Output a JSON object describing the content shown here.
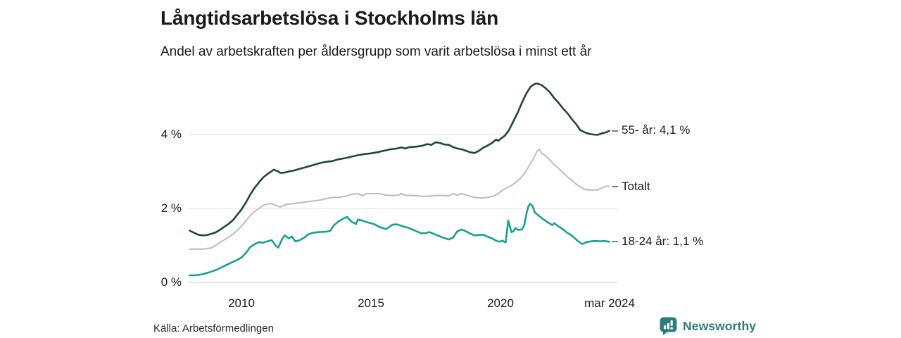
{
  "header": {
    "title": "Långtidsarbetslösa i Stockholms län",
    "subtitle": "Andel av arbetskraften per åldersgrupp som varit arbetslösa i minst ett år"
  },
  "footer": {
    "source": "Källa: Arbetsförmedlingen",
    "brand_name": "Newsworthy",
    "brand_icon": "bar-chart-speech-bubble-icon",
    "brand_color": "#2e7d79"
  },
  "colors": {
    "background": "#ffffff",
    "gridline": "#e3e3e6",
    "tick_dash": "#4a4a4a",
    "text": "#1a1a1a"
  },
  "chart_data": {
    "type": "line",
    "title": "Långtidsarbetslösa i Stockholms län",
    "subtitle": "Andel av arbetskraften per åldersgrupp som varit arbetslösa i minst ett år",
    "grid": true,
    "legend_position": "right-inline-labels",
    "x_axis": {
      "unit": "year (monthly data)",
      "range": [
        2008.0,
        2024.25
      ],
      "ticks": {
        "t2010": "2010",
        "t2015": "2015",
        "t2020": "2020",
        "t2024": "mar 2024"
      },
      "tick_years": [
        2010,
        2015,
        2020,
        2024.2
      ]
    },
    "y_axis": {
      "unit": "percent of labour force",
      "range": [
        0,
        5.6
      ],
      "ticks": {
        "p0": "0 %",
        "p2": "2 %",
        "p4": "4 %"
      },
      "tick_values": [
        0,
        2,
        4
      ]
    },
    "series": [
      {
        "id": "55plus",
        "name": "55- år",
        "label": "55- år: 4,1 %",
        "last_value": 4.1,
        "color": "#1f4839",
        "points": [
          [
            2008.0,
            1.4
          ],
          [
            2008.17,
            1.34
          ],
          [
            2008.33,
            1.29
          ],
          [
            2008.5,
            1.27
          ],
          [
            2008.67,
            1.28
          ],
          [
            2008.83,
            1.31
          ],
          [
            2009.0,
            1.35
          ],
          [
            2009.17,
            1.42
          ],
          [
            2009.33,
            1.5
          ],
          [
            2009.5,
            1.58
          ],
          [
            2009.67,
            1.68
          ],
          [
            2009.83,
            1.82
          ],
          [
            2010.0,
            1.97
          ],
          [
            2010.17,
            2.16
          ],
          [
            2010.33,
            2.36
          ],
          [
            2010.5,
            2.55
          ],
          [
            2010.67,
            2.7
          ],
          [
            2010.83,
            2.83
          ],
          [
            2011.0,
            2.93
          ],
          [
            2011.17,
            3.01
          ],
          [
            2011.25,
            3.05
          ],
          [
            2011.42,
            3.0
          ],
          [
            2011.5,
            2.96
          ],
          [
            2011.67,
            2.97
          ],
          [
            2011.83,
            3.0
          ],
          [
            2012.0,
            3.02
          ],
          [
            2012.25,
            3.07
          ],
          [
            2012.5,
            3.12
          ],
          [
            2012.75,
            3.17
          ],
          [
            2013.0,
            3.22
          ],
          [
            2013.25,
            3.26
          ],
          [
            2013.5,
            3.28
          ],
          [
            2013.75,
            3.33
          ],
          [
            2014.0,
            3.36
          ],
          [
            2014.25,
            3.4
          ],
          [
            2014.5,
            3.44
          ],
          [
            2014.75,
            3.47
          ],
          [
            2015.0,
            3.49
          ],
          [
            2015.25,
            3.52
          ],
          [
            2015.5,
            3.56
          ],
          [
            2015.75,
            3.6
          ],
          [
            2016.0,
            3.62
          ],
          [
            2016.17,
            3.65
          ],
          [
            2016.33,
            3.62
          ],
          [
            2016.5,
            3.66
          ],
          [
            2016.75,
            3.67
          ],
          [
            2017.0,
            3.7
          ],
          [
            2017.17,
            3.74
          ],
          [
            2017.33,
            3.72
          ],
          [
            2017.5,
            3.79
          ],
          [
            2017.67,
            3.77
          ],
          [
            2017.83,
            3.73
          ],
          [
            2018.0,
            3.72
          ],
          [
            2018.17,
            3.66
          ],
          [
            2018.33,
            3.62
          ],
          [
            2018.5,
            3.6
          ],
          [
            2018.67,
            3.56
          ],
          [
            2018.83,
            3.52
          ],
          [
            2019.0,
            3.5
          ],
          [
            2019.17,
            3.56
          ],
          [
            2019.33,
            3.64
          ],
          [
            2019.5,
            3.7
          ],
          [
            2019.67,
            3.77
          ],
          [
            2019.83,
            3.86
          ],
          [
            2019.92,
            3.83
          ],
          [
            2020.0,
            3.88
          ],
          [
            2020.17,
            3.97
          ],
          [
            2020.33,
            4.12
          ],
          [
            2020.5,
            4.36
          ],
          [
            2020.67,
            4.6
          ],
          [
            2020.83,
            4.86
          ],
          [
            2021.0,
            5.11
          ],
          [
            2021.17,
            5.3
          ],
          [
            2021.33,
            5.37
          ],
          [
            2021.42,
            5.38
          ],
          [
            2021.58,
            5.34
          ],
          [
            2021.75,
            5.25
          ],
          [
            2021.92,
            5.13
          ],
          [
            2022.08,
            4.98
          ],
          [
            2022.25,
            4.85
          ],
          [
            2022.42,
            4.7
          ],
          [
            2022.58,
            4.58
          ],
          [
            2022.75,
            4.42
          ],
          [
            2022.92,
            4.28
          ],
          [
            2023.08,
            4.12
          ],
          [
            2023.25,
            4.06
          ],
          [
            2023.42,
            4.02
          ],
          [
            2023.58,
            4.0
          ],
          [
            2023.75,
            3.99
          ],
          [
            2023.92,
            4.03
          ],
          [
            2024.08,
            4.06
          ],
          [
            2024.2,
            4.1
          ]
        ]
      },
      {
        "id": "totalt",
        "name": "Totalt",
        "label": "Totalt",
        "last_value": 2.6,
        "color": "#bdbdc7",
        "points": [
          [
            2008.0,
            0.9
          ],
          [
            2008.25,
            0.9
          ],
          [
            2008.5,
            0.9
          ],
          [
            2008.83,
            0.93
          ],
          [
            2009.0,
            1.0
          ],
          [
            2009.17,
            1.08
          ],
          [
            2009.33,
            1.15
          ],
          [
            2009.5,
            1.22
          ],
          [
            2009.67,
            1.3
          ],
          [
            2009.83,
            1.4
          ],
          [
            2010.0,
            1.52
          ],
          [
            2010.17,
            1.66
          ],
          [
            2010.33,
            1.8
          ],
          [
            2010.5,
            1.91
          ],
          [
            2010.67,
            2.0
          ],
          [
            2010.83,
            2.08
          ],
          [
            2011.0,
            2.12
          ],
          [
            2011.17,
            2.13
          ],
          [
            2011.33,
            2.08
          ],
          [
            2011.5,
            2.04
          ],
          [
            2011.67,
            2.1
          ],
          [
            2011.83,
            2.12
          ],
          [
            2012.0,
            2.13
          ],
          [
            2012.25,
            2.15
          ],
          [
            2012.5,
            2.18
          ],
          [
            2012.75,
            2.2
          ],
          [
            2013.0,
            2.22
          ],
          [
            2013.25,
            2.26
          ],
          [
            2013.5,
            2.3
          ],
          [
            2013.75,
            2.3
          ],
          [
            2014.0,
            2.33
          ],
          [
            2014.25,
            2.38
          ],
          [
            2014.5,
            2.4
          ],
          [
            2014.67,
            2.34
          ],
          [
            2014.83,
            2.4
          ],
          [
            2015.0,
            2.4
          ],
          [
            2015.33,
            2.4
          ],
          [
            2015.58,
            2.36
          ],
          [
            2015.83,
            2.35
          ],
          [
            2016.0,
            2.35
          ],
          [
            2016.17,
            2.4
          ],
          [
            2016.33,
            2.35
          ],
          [
            2016.58,
            2.35
          ],
          [
            2016.83,
            2.34
          ],
          [
            2017.0,
            2.33
          ],
          [
            2017.25,
            2.33
          ],
          [
            2017.5,
            2.35
          ],
          [
            2017.75,
            2.35
          ],
          [
            2018.0,
            2.34
          ],
          [
            2018.17,
            2.4
          ],
          [
            2018.33,
            2.36
          ],
          [
            2018.5,
            2.4
          ],
          [
            2018.67,
            2.36
          ],
          [
            2018.83,
            2.33
          ],
          [
            2019.0,
            2.3
          ],
          [
            2019.25,
            2.28
          ],
          [
            2019.5,
            2.3
          ],
          [
            2019.75,
            2.34
          ],
          [
            2019.92,
            2.4
          ],
          [
            2020.08,
            2.5
          ],
          [
            2020.25,
            2.56
          ],
          [
            2020.42,
            2.62
          ],
          [
            2020.58,
            2.7
          ],
          [
            2020.75,
            2.8
          ],
          [
            2020.92,
            2.94
          ],
          [
            2021.08,
            3.12
          ],
          [
            2021.25,
            3.32
          ],
          [
            2021.42,
            3.56
          ],
          [
            2021.5,
            3.6
          ],
          [
            2021.58,
            3.5
          ],
          [
            2021.75,
            3.42
          ],
          [
            2021.92,
            3.3
          ],
          [
            2022.08,
            3.18
          ],
          [
            2022.25,
            3.08
          ],
          [
            2022.42,
            2.96
          ],
          [
            2022.58,
            2.86
          ],
          [
            2022.75,
            2.76
          ],
          [
            2022.92,
            2.66
          ],
          [
            2023.08,
            2.58
          ],
          [
            2023.25,
            2.52
          ],
          [
            2023.42,
            2.5
          ],
          [
            2023.58,
            2.5
          ],
          [
            2023.75,
            2.5
          ],
          [
            2023.92,
            2.56
          ],
          [
            2024.08,
            2.6
          ],
          [
            2024.2,
            2.6
          ]
        ]
      },
      {
        "id": "18-24",
        "name": "18-24 år",
        "label": "18-24 år: 1,1 %",
        "last_value": 1.1,
        "color": "#17a18d",
        "points": [
          [
            2008.0,
            0.19
          ],
          [
            2008.25,
            0.19
          ],
          [
            2008.5,
            0.22
          ],
          [
            2008.75,
            0.27
          ],
          [
            2009.0,
            0.33
          ],
          [
            2009.25,
            0.41
          ],
          [
            2009.5,
            0.5
          ],
          [
            2009.75,
            0.58
          ],
          [
            2010.0,
            0.67
          ],
          [
            2010.17,
            0.79
          ],
          [
            2010.33,
            0.95
          ],
          [
            2010.5,
            1.03
          ],
          [
            2010.67,
            1.09
          ],
          [
            2010.83,
            1.07
          ],
          [
            2011.0,
            1.11
          ],
          [
            2011.17,
            1.14
          ],
          [
            2011.33,
            0.99
          ],
          [
            2011.42,
            0.94
          ],
          [
            2011.58,
            1.18
          ],
          [
            2011.67,
            1.27
          ],
          [
            2011.83,
            1.19
          ],
          [
            2011.95,
            1.24
          ],
          [
            2012.08,
            1.11
          ],
          [
            2012.25,
            1.14
          ],
          [
            2012.42,
            1.21
          ],
          [
            2012.58,
            1.3
          ],
          [
            2012.75,
            1.34
          ],
          [
            2013.0,
            1.36
          ],
          [
            2013.25,
            1.37
          ],
          [
            2013.42,
            1.39
          ],
          [
            2013.58,
            1.55
          ],
          [
            2013.75,
            1.65
          ],
          [
            2013.92,
            1.72
          ],
          [
            2014.08,
            1.77
          ],
          [
            2014.25,
            1.64
          ],
          [
            2014.42,
            1.58
          ],
          [
            2014.5,
            1.7
          ],
          [
            2014.67,
            1.67
          ],
          [
            2014.83,
            1.63
          ],
          [
            2015.0,
            1.6
          ],
          [
            2015.17,
            1.56
          ],
          [
            2015.33,
            1.5
          ],
          [
            2015.58,
            1.44
          ],
          [
            2015.83,
            1.56
          ],
          [
            2016.0,
            1.57
          ],
          [
            2016.17,
            1.53
          ],
          [
            2016.42,
            1.48
          ],
          [
            2016.67,
            1.41
          ],
          [
            2016.92,
            1.33
          ],
          [
            2017.08,
            1.33
          ],
          [
            2017.25,
            1.36
          ],
          [
            2017.5,
            1.29
          ],
          [
            2017.75,
            1.22
          ],
          [
            2018.0,
            1.16
          ],
          [
            2018.17,
            1.21
          ],
          [
            2018.33,
            1.38
          ],
          [
            2018.5,
            1.43
          ],
          [
            2018.67,
            1.38
          ],
          [
            2018.83,
            1.32
          ],
          [
            2019.0,
            1.27
          ],
          [
            2019.17,
            1.28
          ],
          [
            2019.33,
            1.29
          ],
          [
            2019.5,
            1.24
          ],
          [
            2019.67,
            1.19
          ],
          [
            2019.83,
            1.13
          ],
          [
            2019.95,
            1.1
          ],
          [
            2020.08,
            1.13
          ],
          [
            2020.2,
            1.08
          ],
          [
            2020.3,
            1.67
          ],
          [
            2020.42,
            1.36
          ],
          [
            2020.5,
            1.38
          ],
          [
            2020.58,
            1.47
          ],
          [
            2020.67,
            1.42
          ],
          [
            2020.83,
            1.43
          ],
          [
            2020.92,
            1.55
          ],
          [
            2021.0,
            1.85
          ],
          [
            2021.08,
            2.06
          ],
          [
            2021.15,
            2.13
          ],
          [
            2021.25,
            2.05
          ],
          [
            2021.33,
            1.89
          ],
          [
            2021.5,
            1.79
          ],
          [
            2021.67,
            1.7
          ],
          [
            2021.83,
            1.62
          ],
          [
            2022.0,
            1.55
          ],
          [
            2022.08,
            1.6
          ],
          [
            2022.25,
            1.51
          ],
          [
            2022.42,
            1.43
          ],
          [
            2022.58,
            1.34
          ],
          [
            2022.75,
            1.27
          ],
          [
            2022.92,
            1.16
          ],
          [
            2023.08,
            1.07
          ],
          [
            2023.17,
            1.04
          ],
          [
            2023.33,
            1.09
          ],
          [
            2023.5,
            1.11
          ],
          [
            2023.67,
            1.12
          ],
          [
            2023.83,
            1.11
          ],
          [
            2024.0,
            1.12
          ],
          [
            2024.2,
            1.1
          ]
        ]
      }
    ]
  }
}
